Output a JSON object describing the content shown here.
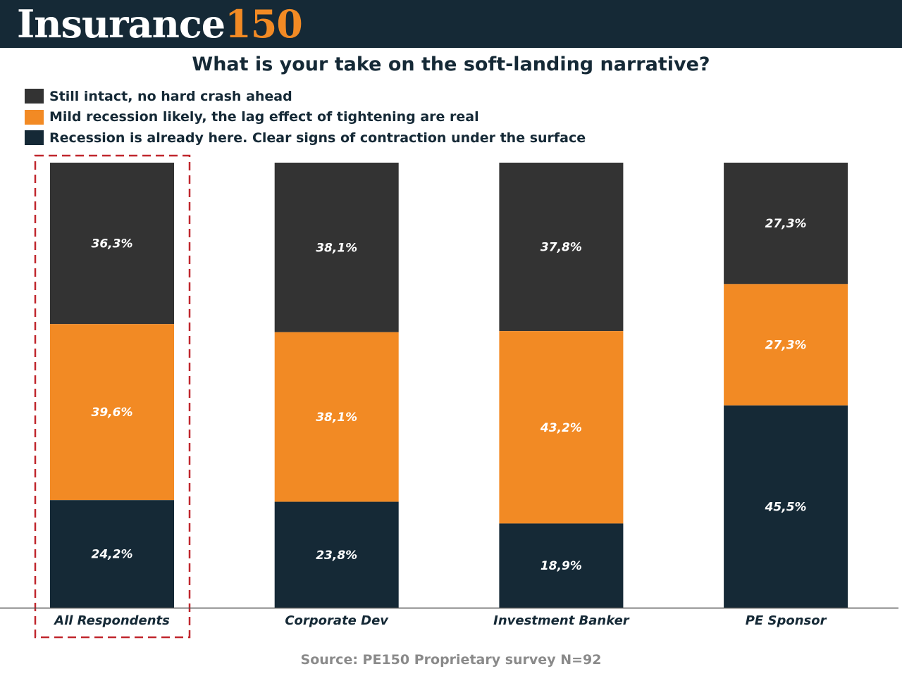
{
  "header": {
    "logo_word": "Insurance",
    "logo_number": "150"
  },
  "colors": {
    "header_bg": "#152936",
    "accent": "#f28a24",
    "dark_gray": "#333333",
    "navy": "#152936",
    "highlight": "#c0272d"
  },
  "chart_data": {
    "type": "bar",
    "stacked": true,
    "title": "What is your take on the soft-landing narrative?",
    "categories": [
      "All Respondents",
      "Corporate Dev",
      "Investment Banker",
      "PE Sponsor"
    ],
    "series": [
      {
        "name": "Still intact, no hard crash ahead",
        "color": "#333333",
        "values": [
          36.3,
          38.1,
          37.8,
          27.3
        ],
        "labels": [
          "36,3%",
          "38,1%",
          "37,8%",
          "27,3%"
        ]
      },
      {
        "name": "Mild recession likely, the lag effect of tightening are real",
        "color": "#f28a24",
        "values": [
          39.6,
          38.1,
          43.2,
          27.3
        ],
        "labels": [
          "39,6%",
          "38,1%",
          "43,2%",
          "27,3%"
        ]
      },
      {
        "name": "Recession is already here. Clear signs of contraction under the surface",
        "color": "#152936",
        "values": [
          24.2,
          23.8,
          18.9,
          45.5
        ],
        "labels": [
          "24,2%",
          "23,8%",
          "18,9%",
          "45,5%"
        ]
      }
    ],
    "ylim": [
      0,
      100
    ],
    "legend": "top-left",
    "grid": false,
    "highlighted_category": "All Respondents"
  },
  "source": "Source: PE150 Proprietary survey N=92"
}
